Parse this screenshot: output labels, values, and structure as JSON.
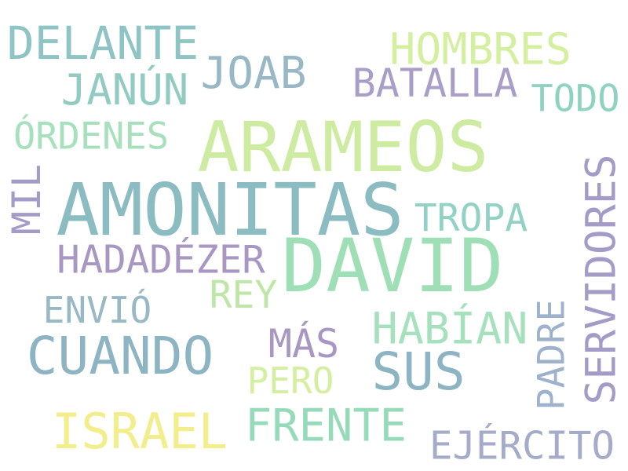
{
  "words": [
    {
      "text": "AMONITAS",
      "color": "#8bbcc2"
    },
    {
      "text": "DAVID",
      "color": "#9fdfb6"
    },
    {
      "text": "ARAMEOS",
      "color": "#cdeca2"
    },
    {
      "text": "CUANDO",
      "color": "#8db4c2"
    },
    {
      "text": "DELANTE",
      "color": "#8fc4c4"
    },
    {
      "text": "HOMBRES",
      "color": "#d4ef9f"
    },
    {
      "text": "JOAB",
      "color": "#97b8c4"
    },
    {
      "text": "JANÚN",
      "color": "#91cbc2"
    },
    {
      "text": "BATALLA",
      "color": "#a99ec8"
    },
    {
      "text": "TODO",
      "color": "#8ed3c0"
    },
    {
      "text": "ÓRDENES",
      "color": "#a6e0bd"
    },
    {
      "text": "MIL",
      "color": "#a49cc6"
    },
    {
      "text": "SERVIDORES",
      "color": "#a49cc6"
    },
    {
      "text": "TROPA",
      "color": "#91d2c4"
    },
    {
      "text": "HADADÉZER",
      "color": "#a797c2"
    },
    {
      "text": "REY",
      "color": "#bee6a6"
    },
    {
      "text": "ENVIÓ",
      "color": "#97b8c4"
    },
    {
      "text": "HABÍAN",
      "color": "#a6e0bd"
    },
    {
      "text": "MÁS",
      "color": "#a797c2"
    },
    {
      "text": "SUS",
      "color": "#8db4c2"
    },
    {
      "text": "PADRE",
      "color": "#9eb2cc"
    },
    {
      "text": "PERO",
      "color": "#d4ef9f"
    },
    {
      "text": "ISRAEL",
      "color": "#f2ee8c"
    },
    {
      "text": "FRENTE",
      "color": "#96dbb9"
    },
    {
      "text": "EJÉRCITO",
      "color": "#a4acca"
    }
  ]
}
